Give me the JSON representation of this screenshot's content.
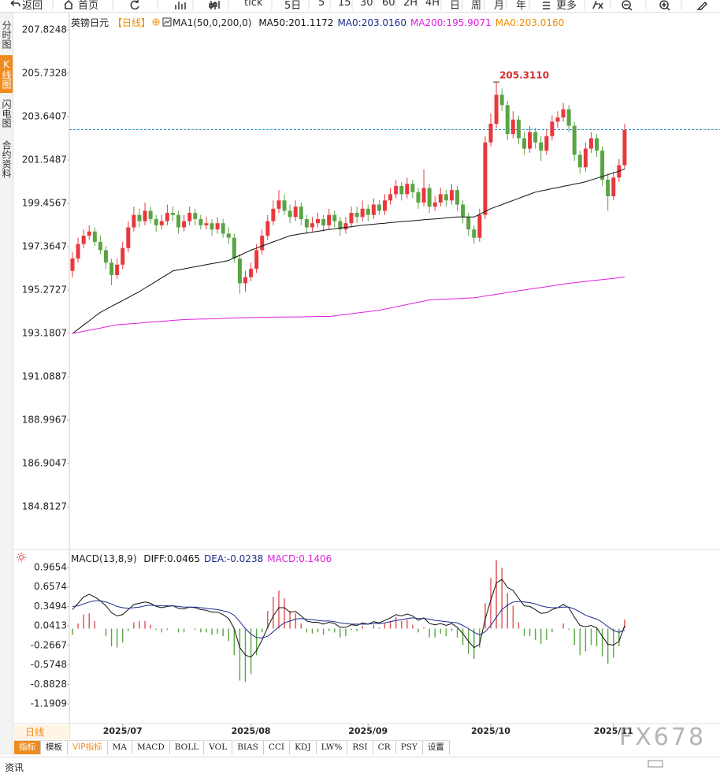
{
  "toolbar": {
    "items": [
      "返回",
      "首页",
      "tick",
      "5日",
      "5",
      "15",
      "30",
      "60",
      "2H",
      "4H",
      "日",
      "周",
      "月",
      "年",
      "更多"
    ]
  },
  "sidebar": {
    "tabs": [
      "分时图",
      "K线图",
      "闪电图",
      "合约资料"
    ]
  },
  "period_tab": "日线",
  "indicator_tabs": [
    "指标",
    "模板",
    "VIP指标",
    "MA",
    "MACD",
    "BOLL",
    "VOL",
    "BIAS",
    "CCI",
    "KDJ",
    "LW%",
    "RSI",
    "CR",
    "PSY",
    "设置"
  ],
  "watermark": "FX678",
  "footer": "资讯",
  "chart_data": [
    {
      "type": "candlestick",
      "symbol": "英镑日元",
      "period": "【日线】",
      "indicator": "MA1(50,0,200,0)",
      "max_label": "205.3110",
      "up_color": "#e8383d",
      "down_color": "#5aa444",
      "price_line": 203.016,
      "price_line_color": "#2a8fd0",
      "categories": [
        null,
        null,
        null,
        null,
        null,
        null,
        null,
        null,
        null,
        "2025/07",
        null,
        null,
        null,
        null,
        null,
        null,
        null,
        null,
        null,
        null,
        null,
        null,
        null,
        null,
        null,
        null,
        null,
        null,
        null,
        null,
        null,
        null,
        "2025/08",
        null,
        null,
        null,
        null,
        null,
        null,
        null,
        null,
        null,
        null,
        null,
        null,
        null,
        null,
        null,
        null,
        null,
        null,
        null,
        null,
        "2025/09",
        null,
        null,
        null,
        null,
        null,
        null,
        null,
        null,
        null,
        null,
        null,
        null,
        null,
        null,
        null,
        null,
        null,
        null,
        null,
        null,
        null,
        "2025/10",
        null,
        null,
        null,
        null,
        null,
        null,
        null,
        null,
        null,
        null,
        null,
        null,
        null,
        null,
        null,
        null,
        null,
        null,
        null,
        null,
        null,
        "2025/11",
        null,
        null
      ],
      "open": [
        196.2,
        196.8,
        197.5,
        197.9,
        198.1,
        197.6,
        197.2,
        196.6,
        196.0,
        196.5,
        197.3,
        198.3,
        198.9,
        198.6,
        199.1,
        198.7,
        198.4,
        198.6,
        199.0,
        198.9,
        198.3,
        198.6,
        199.0,
        198.7,
        198.4,
        198.5,
        198.2,
        198.5,
        198.0,
        197.8,
        196.8,
        195.6,
        195.9,
        196.3,
        197.2,
        197.9,
        198.6,
        199.2,
        199.6,
        199.1,
        198.8,
        199.3,
        198.7,
        198.3,
        198.5,
        198.7,
        198.4,
        198.9,
        198.6,
        198.2,
        198.5,
        199.0,
        198.8,
        199.2,
        198.9,
        199.4,
        199.1,
        199.6,
        199.9,
        200.3,
        199.9,
        200.4,
        200.0,
        199.5,
        200.2,
        199.3,
        199.5,
        199.9,
        199.6,
        200.1,
        199.4,
        198.8,
        198.2,
        197.8,
        198.9,
        202.4,
        203.3,
        204.7,
        204.2,
        202.8,
        203.5,
        202.6,
        202.1,
        202.9,
        202.4,
        202.0,
        202.7,
        203.4,
        203.6,
        204.0,
        203.2,
        201.8,
        201.2,
        202.1,
        202.6,
        202.0,
        200.6,
        199.8,
        200.7,
        201.3
      ],
      "high": [
        197.1,
        197.8,
        198.2,
        198.4,
        198.3,
        197.9,
        197.4,
        196.8,
        196.8,
        197.6,
        198.6,
        199.3,
        199.2,
        199.5,
        199.3,
        198.9,
        198.9,
        199.4,
        199.3,
        199.1,
        198.9,
        199.3,
        199.2,
        198.9,
        198.8,
        198.7,
        198.8,
        198.7,
        198.3,
        198.0,
        197.0,
        196.2,
        196.6,
        197.5,
        198.2,
        198.9,
        199.6,
        200.1,
        199.9,
        199.4,
        199.6,
        199.5,
        198.9,
        198.8,
        199.0,
        198.9,
        199.2,
        199.1,
        198.8,
        198.8,
        199.3,
        199.3,
        199.6,
        199.4,
        199.7,
        199.6,
        199.9,
        200.2,
        200.6,
        200.5,
        200.7,
        200.6,
        200.2,
        201.1,
        200.4,
        199.8,
        200.2,
        200.1,
        200.4,
        200.3,
        199.6,
        199.0,
        198.4,
        199.2,
        202.7,
        203.8,
        205.311,
        205.0,
        204.4,
        203.9,
        203.7,
        202.9,
        203.2,
        203.1,
        202.7,
        203.0,
        203.7,
        203.9,
        204.3,
        204.2,
        203.4,
        202.0,
        202.4,
        202.9,
        202.8,
        202.2,
        200.9,
        201.0,
        201.6,
        203.3
      ],
      "low": [
        195.9,
        196.6,
        197.3,
        197.7,
        197.4,
        197.0,
        196.3,
        195.5,
        195.8,
        196.3,
        197.1,
        198.1,
        198.3,
        198.4,
        198.5,
        198.1,
        198.2,
        198.4,
        198.6,
        198.0,
        198.1,
        198.4,
        198.4,
        198.2,
        198.2,
        197.9,
        198.0,
        197.8,
        197.5,
        196.6,
        195.1,
        195.2,
        195.7,
        196.1,
        197.0,
        197.7,
        198.4,
        199.0,
        198.9,
        198.5,
        198.6,
        198.4,
        198.0,
        198.1,
        198.3,
        198.1,
        198.2,
        198.3,
        197.9,
        198.0,
        198.3,
        198.5,
        198.6,
        198.6,
        198.7,
        198.9,
        198.9,
        199.4,
        199.7,
        199.6,
        199.7,
        199.7,
        199.2,
        199.3,
        199.0,
        199.1,
        199.3,
        199.3,
        199.4,
        199.1,
        198.5,
        197.9,
        197.5,
        197.6,
        198.7,
        202.2,
        203.1,
        203.9,
        202.5,
        202.6,
        202.3,
        201.8,
        201.9,
        202.1,
        201.5,
        201.8,
        202.5,
        203.1,
        203.4,
        202.9,
        201.5,
        200.9,
        201.0,
        201.9,
        201.7,
        200.3,
        199.1,
        199.6,
        200.5,
        201.1
      ],
      "close": [
        196.8,
        197.5,
        197.9,
        198.1,
        197.6,
        197.2,
        196.6,
        196.0,
        196.5,
        197.3,
        198.3,
        198.9,
        198.6,
        199.1,
        198.7,
        198.4,
        198.6,
        199.0,
        198.9,
        198.3,
        198.6,
        199.0,
        198.7,
        198.4,
        198.5,
        198.2,
        198.5,
        198.0,
        197.8,
        196.8,
        195.6,
        195.9,
        196.3,
        197.2,
        197.9,
        198.6,
        199.2,
        199.6,
        199.1,
        198.8,
        199.3,
        198.7,
        198.3,
        198.5,
        198.7,
        198.4,
        198.9,
        198.6,
        198.2,
        198.5,
        199.0,
        198.8,
        199.2,
        198.9,
        199.4,
        199.1,
        199.6,
        199.9,
        200.3,
        199.9,
        200.4,
        200.0,
        199.5,
        200.2,
        199.3,
        199.5,
        199.9,
        199.6,
        200.1,
        199.4,
        198.8,
        198.2,
        197.8,
        198.9,
        202.4,
        203.3,
        204.7,
        204.2,
        202.8,
        203.5,
        202.6,
        202.1,
        202.9,
        202.4,
        202.0,
        202.7,
        203.4,
        203.6,
        204.0,
        203.2,
        201.8,
        201.2,
        202.1,
        202.6,
        202.0,
        200.6,
        199.8,
        200.7,
        201.3,
        203.0
      ],
      "series": [
        {
          "name": "MA50:201.1172",
          "color": "#111111",
          "values": [
            193.18,
            193.38,
            193.59,
            193.79,
            194.0,
            194.2,
            194.34,
            194.49,
            194.63,
            194.77,
            194.91,
            195.06,
            195.2,
            195.37,
            195.53,
            195.7,
            195.87,
            196.03,
            196.2,
            196.25,
            196.3,
            196.35,
            196.4,
            196.45,
            196.5,
            196.55,
            196.6,
            196.65,
            196.7,
            196.83,
            196.95,
            197.08,
            197.2,
            197.3,
            197.4,
            197.5,
            197.6,
            197.7,
            197.8,
            197.9,
            197.94,
            197.99,
            198.03,
            198.07,
            198.11,
            198.16,
            198.2,
            198.23,
            198.27,
            198.3,
            198.33,
            198.37,
            198.4,
            198.43,
            198.45,
            198.48,
            198.5,
            198.53,
            198.55,
            198.58,
            198.6,
            198.62,
            198.64,
            198.67,
            198.69,
            198.71,
            198.73,
            198.76,
            198.78,
            198.8,
            198.8,
            198.8,
            198.8,
            198.93,
            199.07,
            199.2,
            199.3,
            199.4,
            199.5,
            199.6,
            199.7,
            199.8,
            199.9,
            200.0,
            200.06,
            200.11,
            200.17,
            200.22,
            200.28,
            200.33,
            200.39,
            200.44,
            200.5,
            200.59,
            200.67,
            200.76,
            200.84,
            200.93,
            201.01,
            201.12
          ]
        },
        {
          "name": "MA0:203.0160",
          "color": "#1b2a8c"
        },
        {
          "name": "MA200:195.9071",
          "color": "#e020e0",
          "values": [
            193.18,
            193.23,
            193.29,
            193.34,
            193.39,
            193.44,
            193.5,
            193.55,
            193.6,
            193.62,
            193.64,
            193.66,
            193.68,
            193.71,
            193.73,
            193.75,
            193.77,
            193.79,
            193.81,
            193.83,
            193.85,
            193.86,
            193.87,
            193.88,
            193.88,
            193.89,
            193.9,
            193.91,
            193.92,
            193.93,
            193.94,
            193.94,
            193.95,
            193.95,
            193.96,
            193.96,
            193.97,
            193.97,
            193.97,
            193.98,
            193.98,
            193.98,
            193.99,
            193.99,
            194.0,
            194.0,
            194.0,
            194.03,
            194.07,
            194.1,
            194.13,
            194.17,
            194.2,
            194.23,
            194.27,
            194.3,
            194.36,
            194.41,
            194.47,
            194.52,
            194.58,
            194.63,
            194.69,
            194.74,
            194.8,
            194.81,
            194.83,
            194.84,
            194.85,
            194.86,
            194.88,
            194.89,
            194.9,
            194.94,
            194.99,
            195.03,
            195.07,
            195.11,
            195.16,
            195.2,
            195.24,
            195.28,
            195.32,
            195.36,
            195.4,
            195.44,
            195.48,
            195.52,
            195.56,
            195.6,
            195.63,
            195.66,
            195.69,
            195.72,
            195.75,
            195.78,
            195.81,
            195.84,
            195.87,
            195.91
          ]
        },
        {
          "name": "MA0:203.0160",
          "color": "#f08c00"
        }
      ],
      "ylim": [
        182.84,
        208.51
      ],
      "yticks": [
        207.8248,
        205.7328,
        203.6407,
        201.5487,
        199.4567,
        197.3647,
        195.2727,
        193.1807,
        191.0887,
        188.9967,
        186.9047,
        184.8127
      ]
    },
    {
      "type": "macd",
      "title": "MACD(13,8,9)",
      "up_color": "#e05050",
      "down_color": "#5aa444",
      "series": [
        {
          "name": "DIFF:0.0465",
          "color": "#111111",
          "values": [
            0.3,
            0.4,
            0.5,
            0.54,
            0.5,
            0.44,
            0.36,
            0.25,
            0.2,
            0.22,
            0.3,
            0.38,
            0.4,
            0.42,
            0.4,
            0.35,
            0.33,
            0.35,
            0.36,
            0.32,
            0.31,
            0.34,
            0.33,
            0.3,
            0.29,
            0.26,
            0.26,
            0.22,
            0.16,
            0.0,
            -0.3,
            -0.42,
            -0.45,
            -0.35,
            -0.18,
            0.02,
            0.2,
            0.33,
            0.33,
            0.26,
            0.27,
            0.2,
            0.12,
            0.1,
            0.1,
            0.07,
            0.1,
            0.08,
            0.02,
            0.02,
            0.06,
            0.05,
            0.09,
            0.07,
            0.11,
            0.09,
            0.13,
            0.17,
            0.22,
            0.2,
            0.23,
            0.2,
            0.13,
            0.17,
            0.08,
            0.06,
            0.08,
            0.05,
            0.08,
            0.02,
            -0.08,
            -0.2,
            -0.3,
            -0.25,
            0.15,
            0.45,
            0.72,
            0.78,
            0.65,
            0.6,
            0.48,
            0.36,
            0.35,
            0.3,
            0.24,
            0.25,
            0.3,
            0.33,
            0.38,
            0.33,
            0.18,
            0.05,
            0.03,
            0.05,
            0.01,
            -0.12,
            -0.25,
            -0.26,
            -0.2,
            0.0465
          ]
        },
        {
          "name": "DEA:-0.0238",
          "color": "#1b2a8c",
          "values": [
            0.35,
            0.36,
            0.39,
            0.42,
            0.44,
            0.44,
            0.42,
            0.39,
            0.35,
            0.33,
            0.32,
            0.33,
            0.34,
            0.36,
            0.37,
            0.36,
            0.36,
            0.36,
            0.36,
            0.35,
            0.34,
            0.34,
            0.34,
            0.33,
            0.32,
            0.31,
            0.3,
            0.28,
            0.26,
            0.21,
            0.11,
            0.0,
            -0.09,
            -0.14,
            -0.15,
            -0.12,
            -0.05,
            0.03,
            0.09,
            0.12,
            0.15,
            0.16,
            0.15,
            0.14,
            0.13,
            0.12,
            0.12,
            0.11,
            0.09,
            0.08,
            0.07,
            0.07,
            0.07,
            0.07,
            0.08,
            0.08,
            0.09,
            0.11,
            0.13,
            0.14,
            0.16,
            0.17,
            0.16,
            0.16,
            0.15,
            0.13,
            0.12,
            0.11,
            0.1,
            0.09,
            0.05,
            0.0,
            -0.06,
            -0.1,
            -0.05,
            0.05,
            0.18,
            0.3,
            0.37,
            0.42,
            0.43,
            0.42,
            0.41,
            0.39,
            0.36,
            0.34,
            0.33,
            0.33,
            0.34,
            0.34,
            0.31,
            0.26,
            0.21,
            0.18,
            0.15,
            0.1,
            0.03,
            -0.03,
            -0.06,
            -0.0238
          ]
        },
        {
          "name": "MACD:0.1406",
          "color": "#e020e0",
          "histogram": true,
          "values": [
            -0.1,
            0.08,
            0.22,
            0.24,
            0.12,
            0.0,
            -0.12,
            -0.28,
            -0.3,
            -0.22,
            -0.04,
            0.1,
            0.12,
            0.12,
            0.06,
            -0.02,
            -0.06,
            -0.02,
            0.0,
            -0.06,
            -0.06,
            0.0,
            -0.02,
            -0.06,
            -0.06,
            -0.1,
            -0.08,
            -0.12,
            -0.2,
            -0.42,
            -0.82,
            -0.84,
            -0.72,
            -0.42,
            -0.06,
            0.28,
            0.5,
            0.6,
            0.48,
            0.28,
            0.24,
            0.08,
            -0.06,
            -0.08,
            -0.06,
            -0.1,
            -0.04,
            -0.06,
            -0.14,
            -0.12,
            -0.02,
            -0.04,
            0.04,
            0.0,
            0.06,
            0.02,
            0.08,
            0.12,
            0.18,
            0.12,
            0.14,
            0.06,
            -0.06,
            0.02,
            -0.14,
            -0.14,
            -0.08,
            -0.12,
            -0.04,
            -0.14,
            -0.26,
            -0.4,
            -0.48,
            -0.3,
            0.4,
            0.8,
            1.08,
            0.96,
            0.56,
            0.36,
            0.1,
            -0.12,
            -0.12,
            -0.18,
            -0.24,
            -0.18,
            -0.06,
            0.0,
            0.08,
            -0.02,
            -0.26,
            -0.42,
            -0.36,
            -0.26,
            -0.28,
            -0.44,
            -0.56,
            -0.46,
            -0.28,
            0.1406
          ]
        }
      ],
      "ylim": [
        -1.5,
        1.214
      ],
      "yticks": [
        0.9654,
        0.6574,
        0.3494,
        0.0413,
        -0.2667,
        -0.5748,
        -0.8828,
        -1.1909
      ]
    }
  ]
}
